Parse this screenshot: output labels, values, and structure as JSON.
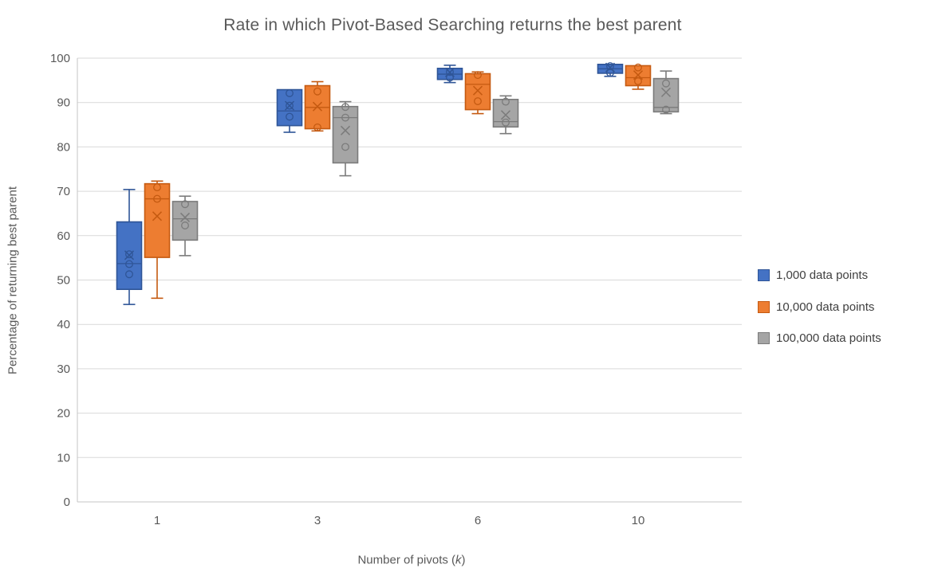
{
  "title": "Rate in which Pivot-Based Searching returns the best parent",
  "y_axis": {
    "title": "Percentage of returning best parent",
    "ticks": [
      "0",
      "10",
      "20",
      "30",
      "40",
      "50",
      "60",
      "70",
      "80",
      "90",
      "100"
    ]
  },
  "x_axis": {
    "title_prefix": "Number of pivots (",
    "title_k": "k",
    "title_suffix": ")",
    "categories": [
      "1",
      "3",
      "6",
      "10"
    ]
  },
  "colors": {
    "gridline": "#D9D9D9",
    "axis_line": "#C6C6C6",
    "text": "#595959",
    "background": "#FFFFFF"
  },
  "chart_data": {
    "type": "box",
    "title": "Rate in which Pivot-Based Searching returns the best parent",
    "xlabel": "Number of pivots (k)",
    "ylabel": "Percentage of returning best parent",
    "ylim": [
      0,
      100
    ],
    "grid": true,
    "legend_position": "right",
    "categories": [
      "1",
      "3",
      "6",
      "10"
    ],
    "series": [
      {
        "name": "1,000 data points",
        "fill": "#4472C4",
        "stroke": "#2F5597",
        "boxes": [
          {
            "whisker_low": 44.5,
            "q1": 47.9,
            "median": 53.7,
            "q3": 63.1,
            "whisker_high": 70.4,
            "mean": 55.6,
            "points": [
              55.8,
              53.6,
              51.3
            ]
          },
          {
            "whisker_low": 83.3,
            "q1": 84.8,
            "median": 88.1,
            "q3": 92.9,
            "whisker_high": 92.9,
            "mean": 89.3,
            "points": [
              92.1,
              89.3,
              86.8
            ]
          },
          {
            "whisker_low": 94.5,
            "q1": 95.2,
            "median": 96.4,
            "q3": 97.7,
            "whisker_high": 98.4,
            "mean": 96.8,
            "points": [
              96.9,
              95.6
            ]
          },
          {
            "whisker_low": 95.9,
            "q1": 96.6,
            "median": 97.6,
            "q3": 98.6,
            "whisker_high": 98.6,
            "mean": 97.9,
            "points": [
              98.2,
              96.7
            ]
          }
        ]
      },
      {
        "name": "10,000 data points",
        "fill": "#ED7D31",
        "stroke": "#C55A11",
        "boxes": [
          {
            "whisker_low": 45.9,
            "q1": 55.1,
            "median": 68.3,
            "q3": 71.7,
            "whisker_high": 72.3,
            "mean": 64.4,
            "points": [
              70.9,
              68.3
            ]
          },
          {
            "whisker_low": 83.6,
            "q1": 84.1,
            "median": 88.9,
            "q3": 93.8,
            "whisker_high": 94.7,
            "mean": 89.1,
            "points": [
              92.5,
              84.4
            ]
          },
          {
            "whisker_low": 87.5,
            "q1": 88.4,
            "median": 94.1,
            "q3": 96.5,
            "whisker_high": 96.9,
            "mean": 92.7,
            "points": [
              96.2,
              90.3
            ]
          },
          {
            "whisker_low": 93.0,
            "q1": 93.8,
            "median": 95.6,
            "q3": 98.3,
            "whisker_high": 98.3,
            "mean": 96.2,
            "points": [
              97.9,
              94.8
            ]
          }
        ]
      },
      {
        "name": "100,000 data points",
        "fill": "#A5A5A5",
        "stroke": "#7B7B7B",
        "boxes": [
          {
            "whisker_low": 55.5,
            "q1": 59.0,
            "median": 63.8,
            "q3": 67.7,
            "whisker_high": 68.9,
            "mean": 64.1,
            "points": [
              67.1,
              62.3
            ]
          },
          {
            "whisker_low": 73.5,
            "q1": 76.4,
            "median": 86.6,
            "q3": 89.1,
            "whisker_high": 90.2,
            "mean": 83.7,
            "points": [
              89.0,
              86.6,
              80.0
            ]
          },
          {
            "whisker_low": 83.0,
            "q1": 84.5,
            "median": 85.7,
            "q3": 90.7,
            "whisker_high": 91.5,
            "mean": 87.2,
            "points": [
              90.2,
              85.5
            ]
          },
          {
            "whisker_low": 87.5,
            "q1": 87.9,
            "median": 88.9,
            "q3": 95.4,
            "whisker_high": 97.1,
            "mean": 92.3,
            "points": [
              94.3,
              88.4
            ]
          }
        ]
      }
    ]
  }
}
